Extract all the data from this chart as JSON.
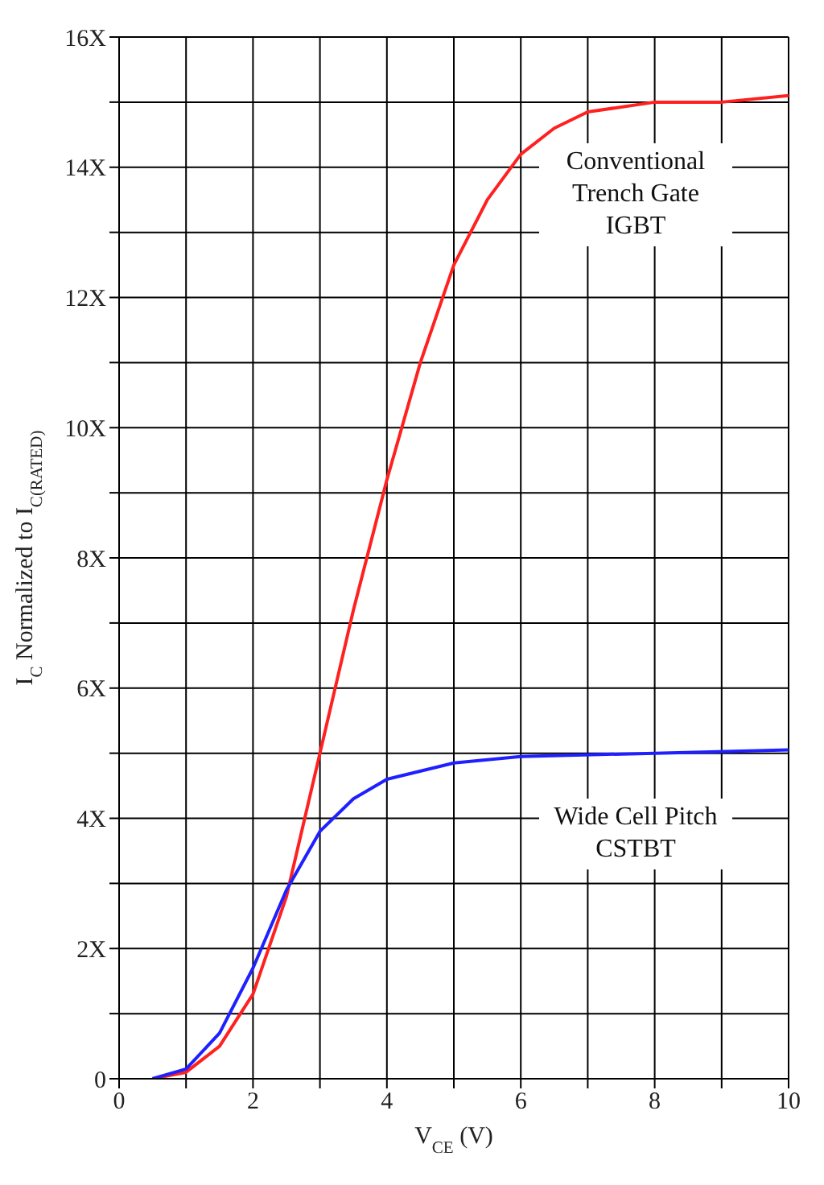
{
  "chart_data": {
    "type": "line",
    "xlabel": "V$_{CE}$ (V)",
    "ylabel": "I$_{C}$ Normalized to I$_{C(RATED)}$",
    "xlim": [
      0,
      10
    ],
    "ylim": [
      0,
      16
    ],
    "xticks": [
      0,
      {
        "value": 1,
        "label": null
      },
      2,
      {
        "value": 3,
        "label": null
      },
      4,
      {
        "value": 5,
        "label": null
      },
      6,
      {
        "value": 7,
        "label": null
      },
      8,
      {
        "value": 9,
        "label": null
      },
      10
    ],
    "yticks": [
      0,
      {
        "value": 1,
        "label": null
      },
      {
        "value": 2,
        "label": "2X"
      },
      {
        "value": 3,
        "label": null
      },
      {
        "value": 4,
        "label": "4X"
      },
      {
        "value": 5,
        "label": null
      },
      {
        "value": 6,
        "label": "6X"
      },
      {
        "value": 7,
        "label": null
      },
      {
        "value": 8,
        "label": "8X"
      },
      {
        "value": 9,
        "label": null
      },
      {
        "value": 10,
        "label": "10X"
      },
      {
        "value": 11,
        "label": null
      },
      {
        "value": 12,
        "label": "12X"
      },
      {
        "value": 13,
        "label": null
      },
      {
        "value": 14,
        "label": "14X"
      },
      {
        "value": 15,
        "label": null
      },
      {
        "value": 16,
        "label": "16X"
      }
    ],
    "grid": true,
    "legend": false,
    "marker": "none",
    "line_style": "solid",
    "series": [
      {
        "name": "Conventional Trench Gate IGBT",
        "color": "#ff2020",
        "x": [
          0.5,
          1,
          1.5,
          2,
          2.5,
          3,
          3.5,
          4,
          4.5,
          5,
          5.5,
          6,
          6.5,
          7,
          8,
          9,
          10
        ],
        "values": [
          0,
          0.1,
          0.5,
          1.3,
          2.8,
          5,
          7.2,
          9.2,
          11,
          12.5,
          13.5,
          14.2,
          14.6,
          14.85,
          15,
          15,
          15.1
        ]
      },
      {
        "name": "Wide Cell Pitch CSTBT",
        "color": "#2020ff",
        "x": [
          0.5,
          1,
          1.5,
          2,
          2.5,
          3,
          3.5,
          4,
          5,
          6,
          8,
          10
        ],
        "values": [
          0,
          0.15,
          0.7,
          1.7,
          2.9,
          3.8,
          4.3,
          4.6,
          4.85,
          4.95,
          5,
          5.05
        ]
      }
    ]
  }
}
